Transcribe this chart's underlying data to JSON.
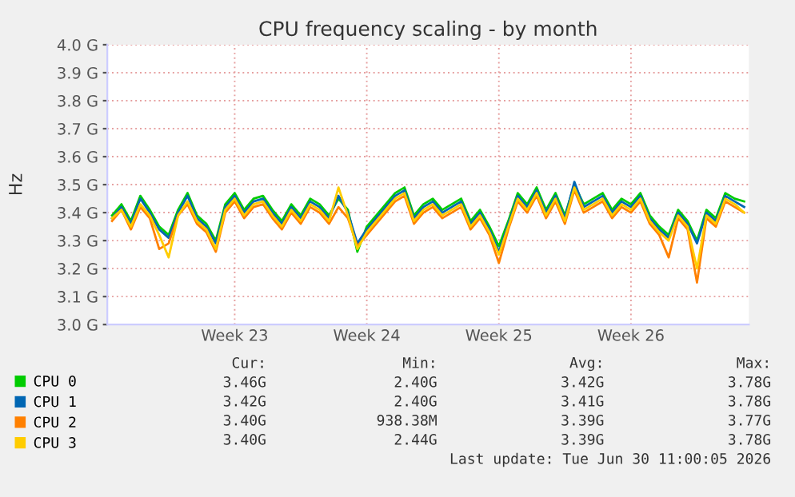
{
  "chart_data": {
    "type": "line",
    "title": "CPU frequency scaling - by month",
    "ylabel": "Hz",
    "series": [
      {
        "name": "CPU 0",
        "color": "#00cc00",
        "values": [
          3.39,
          3.43,
          3.37,
          3.46,
          3.41,
          3.35,
          3.32,
          3.41,
          3.47,
          3.39,
          3.36,
          3.3,
          3.43,
          3.47,
          3.41,
          3.45,
          3.46,
          3.41,
          3.37,
          3.43,
          3.39,
          3.45,
          3.43,
          3.39,
          3.45,
          3.41,
          3.26,
          3.35,
          3.39,
          3.43,
          3.47,
          3.49,
          3.39,
          3.43,
          3.45,
          3.41,
          3.43,
          3.45,
          3.37,
          3.41,
          3.35,
          3.28,
          3.37,
          3.47,
          3.43,
          3.49,
          3.41,
          3.47,
          3.39,
          3.5,
          3.43,
          3.45,
          3.47,
          3.41,
          3.45,
          3.43,
          3.47,
          3.39,
          3.35,
          3.32,
          3.41,
          3.37,
          3.3,
          3.41,
          3.38,
          3.47,
          3.45,
          3.44
        ]
      },
      {
        "name": "CPU 1",
        "color": "#0066b3",
        "values": [
          3.38,
          3.42,
          3.36,
          3.45,
          3.4,
          3.34,
          3.31,
          3.4,
          3.46,
          3.38,
          3.35,
          3.29,
          3.42,
          3.46,
          3.4,
          3.44,
          3.45,
          3.4,
          3.36,
          3.42,
          3.38,
          3.44,
          3.42,
          3.38,
          3.46,
          3.4,
          3.29,
          3.34,
          3.38,
          3.42,
          3.46,
          3.48,
          3.38,
          3.42,
          3.44,
          3.4,
          3.42,
          3.44,
          3.36,
          3.4,
          3.34,
          3.26,
          3.36,
          3.46,
          3.42,
          3.48,
          3.4,
          3.46,
          3.38,
          3.51,
          3.42,
          3.44,
          3.46,
          3.4,
          3.44,
          3.42,
          3.46,
          3.38,
          3.34,
          3.31,
          3.4,
          3.36,
          3.29,
          3.4,
          3.37,
          3.46,
          3.44,
          3.42
        ]
      },
      {
        "name": "CPU 2",
        "color": "#ff8000",
        "values": [
          3.37,
          3.41,
          3.34,
          3.42,
          3.38,
          3.27,
          3.29,
          3.39,
          3.43,
          3.36,
          3.33,
          3.26,
          3.4,
          3.44,
          3.38,
          3.42,
          3.43,
          3.38,
          3.34,
          3.4,
          3.36,
          3.42,
          3.4,
          3.36,
          3.42,
          3.38,
          3.28,
          3.32,
          3.36,
          3.4,
          3.44,
          3.46,
          3.36,
          3.4,
          3.42,
          3.38,
          3.4,
          3.42,
          3.34,
          3.38,
          3.32,
          3.22,
          3.34,
          3.44,
          3.4,
          3.46,
          3.38,
          3.44,
          3.36,
          3.48,
          3.4,
          3.42,
          3.44,
          3.38,
          3.42,
          3.4,
          3.44,
          3.36,
          3.32,
          3.24,
          3.38,
          3.34,
          3.15,
          3.38,
          3.35,
          3.44,
          3.42,
          3.4
        ]
      },
      {
        "name": "CPU 3",
        "color": "#ffcc00",
        "values": [
          3.38,
          3.41,
          3.35,
          3.43,
          3.39,
          3.32,
          3.24,
          3.39,
          3.44,
          3.37,
          3.34,
          3.27,
          3.41,
          3.45,
          3.39,
          3.43,
          3.44,
          3.39,
          3.35,
          3.41,
          3.37,
          3.43,
          3.41,
          3.37,
          3.49,
          3.39,
          3.27,
          3.33,
          3.37,
          3.41,
          3.45,
          3.47,
          3.37,
          3.41,
          3.43,
          3.39,
          3.41,
          3.43,
          3.35,
          3.39,
          3.33,
          3.25,
          3.35,
          3.45,
          3.41,
          3.47,
          3.39,
          3.45,
          3.37,
          3.49,
          3.41,
          3.43,
          3.45,
          3.39,
          3.43,
          3.41,
          3.45,
          3.37,
          3.33,
          3.3,
          3.39,
          3.35,
          3.2,
          3.39,
          3.36,
          3.45,
          3.43,
          3.4
        ]
      }
    ],
    "categories": [
      null,
      null,
      null,
      null,
      null,
      null,
      null,
      null,
      null,
      null,
      null,
      null,
      null,
      "Week 23",
      null,
      null,
      null,
      null,
      null,
      null,
      null,
      null,
      null,
      null,
      null,
      null,
      null,
      "Week 24",
      null,
      null,
      null,
      null,
      null,
      null,
      null,
      null,
      null,
      null,
      null,
      null,
      null,
      "Week 25",
      null,
      null,
      null,
      null,
      null,
      null,
      null,
      null,
      null,
      null,
      null,
      null,
      null,
      "Week 26",
      null,
      null,
      null,
      null,
      null,
      null,
      null,
      null,
      null,
      null,
      null,
      null
    ],
    "ylim": [
      3.0,
      4.0
    ],
    "yticks": [
      {
        "value": 3.0,
        "label": "3.0 G"
      },
      {
        "value": 3.1,
        "label": "3.1 G"
      },
      {
        "value": 3.2,
        "label": "3.2 G"
      },
      {
        "value": 3.3,
        "label": "3.3 G"
      },
      {
        "value": 3.4,
        "label": "3.4 G"
      },
      {
        "value": 3.5,
        "label": "3.5 G"
      },
      {
        "value": 3.6,
        "label": "3.6 G"
      },
      {
        "value": 3.7,
        "label": "3.7 G"
      },
      {
        "value": 3.8,
        "label": "3.8 G"
      },
      {
        "value": 3.9,
        "label": "3.9 G"
      },
      {
        "value": 4.0,
        "label": "4.0 G"
      }
    ],
    "grid": true,
    "legend": "bottom left",
    "marker": "none",
    "line_style": "solid",
    "annotations": [
      "Cur:",
      "Min:",
      "Avg:",
      "Max:",
      "3.46G",
      "2.40G",
      "3.42G",
      "3.78G",
      "3.42G",
      "2.40G",
      "3.41G",
      "3.78G",
      "3.40G",
      "938.38M",
      "3.39G",
      "3.77G",
      "3.40G",
      "2.44G",
      "3.39G",
      "3.78G",
      "Last update: Tue Jun 30 11:00:05 2026"
    ]
  }
}
